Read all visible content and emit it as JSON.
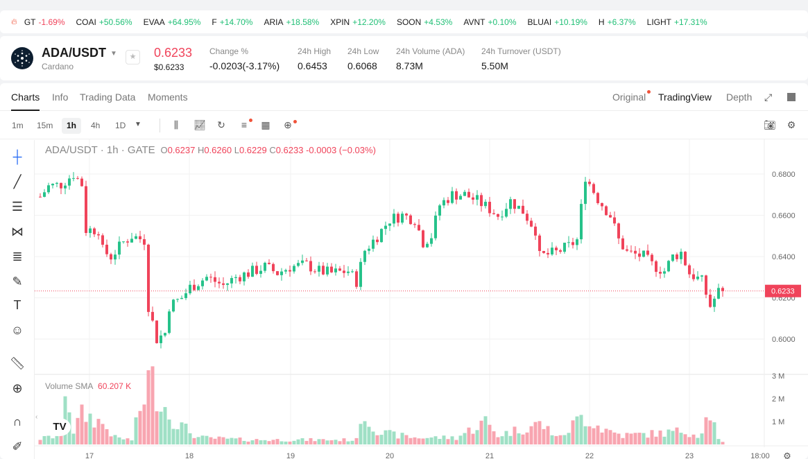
{
  "ticker": [
    {
      "sym": "GT",
      "chg": "-1.69%",
      "dir": "dn"
    },
    {
      "sym": "COAI",
      "chg": "+50.56%",
      "dir": "up"
    },
    {
      "sym": "EVAA",
      "chg": "+64.95%",
      "dir": "up"
    },
    {
      "sym": "F",
      "chg": "+14.70%",
      "dir": "up"
    },
    {
      "sym": "ARIA",
      "chg": "+18.58%",
      "dir": "up"
    },
    {
      "sym": "XPIN",
      "chg": "+12.20%",
      "dir": "up"
    },
    {
      "sym": "SOON",
      "chg": "+4.53%",
      "dir": "up"
    },
    {
      "sym": "AVNT",
      "chg": "+0.10%",
      "dir": "up"
    },
    {
      "sym": "BLUAI",
      "chg": "+10.19%",
      "dir": "up"
    },
    {
      "sym": "H",
      "chg": "+6.37%",
      "dir": "up"
    },
    {
      "sym": "LIGHT",
      "chg": "+17.31%",
      "dir": "up"
    }
  ],
  "header": {
    "pair": "ADA/USDT",
    "name": "Cardano",
    "last": "0.6233",
    "last_usd": "$0.6233",
    "stats": [
      {
        "label": "Change %",
        "value": "-0.0203(-3.17%)"
      },
      {
        "label": "24h High",
        "value": "0.6453"
      },
      {
        "label": "24h Low",
        "value": "0.6068"
      },
      {
        "label": "24h Volume (ADA)",
        "value": "8.73M"
      },
      {
        "label": "24h Turnover (USDT)",
        "value": "5.50M"
      }
    ]
  },
  "tabs": [
    "Charts",
    "Info",
    "Trading Data",
    "Moments"
  ],
  "views": [
    "Original",
    "TradingView",
    "Depth"
  ],
  "intervals": [
    "1m",
    "15m",
    "1h",
    "4h",
    "1D"
  ],
  "legend": {
    "title": "ADA/USDT · 1h · GATE",
    "o": "0.6237",
    "h": "0.6260",
    "l": "0.6229",
    "c": "0.6233",
    "chg": "-0.0003 (−0.03%)",
    "vol_label": "Volume SMA",
    "vol_value": "60.207 K"
  },
  "colors": {
    "up": "#26c28a",
    "down": "#f0435a",
    "vol_up": "#9fe0c5",
    "vol_down": "#f8a5b0"
  },
  "chart_data": {
    "type": "candlestick",
    "ylim": [
      0.592,
      0.688
    ],
    "y_ticks": [
      "0.6000",
      "0.6200",
      "0.6400",
      "0.6600",
      "0.6800"
    ],
    "x_ticks": [
      "17",
      "18",
      "19",
      "20",
      "21",
      "22",
      "23",
      "18:00"
    ],
    "vol_ticks": [
      "1 M",
      "2 M",
      "3 M"
    ],
    "last_price": "0.6233",
    "close_trace": [
      [
        0,
        0.669
      ],
      [
        2,
        0.674
      ],
      [
        5,
        0.675
      ],
      [
        8,
        0.68
      ],
      [
        10,
        0.675
      ],
      [
        11,
        0.653
      ],
      [
        14,
        0.653
      ],
      [
        15,
        0.643
      ],
      [
        17,
        0.64
      ],
      [
        20,
        0.647
      ],
      [
        22,
        0.65
      ],
      [
        25,
        0.648
      ],
      [
        26,
        0.616
      ],
      [
        28,
        0.6
      ],
      [
        30,
        0.603
      ],
      [
        31,
        0.616
      ],
      [
        34,
        0.62
      ],
      [
        36,
        0.625
      ],
      [
        40,
        0.63
      ],
      [
        44,
        0.626
      ],
      [
        47,
        0.63
      ],
      [
        50,
        0.632
      ],
      [
        54,
        0.635
      ],
      [
        57,
        0.632
      ],
      [
        60,
        0.635
      ],
      [
        64,
        0.636
      ],
      [
        67,
        0.633
      ],
      [
        70,
        0.632
      ],
      [
        74,
        0.633
      ],
      [
        76,
        0.628
      ],
      [
        78,
        0.643
      ],
      [
        81,
        0.65
      ],
      [
        84,
        0.658
      ],
      [
        87,
        0.66
      ],
      [
        90,
        0.658
      ],
      [
        92,
        0.647
      ],
      [
        94,
        0.65
      ],
      [
        96,
        0.665
      ],
      [
        99,
        0.67
      ],
      [
        102,
        0.67
      ],
      [
        105,
        0.667
      ],
      [
        108,
        0.663
      ],
      [
        110,
        0.66
      ],
      [
        113,
        0.667
      ],
      [
        116,
        0.662
      ],
      [
        119,
        0.653
      ],
      [
        120,
        0.64
      ],
      [
        124,
        0.642
      ],
      [
        127,
        0.645
      ],
      [
        129,
        0.648
      ],
      [
        131,
        0.679
      ],
      [
        134,
        0.668
      ],
      [
        137,
        0.66
      ],
      [
        139,
        0.648
      ],
      [
        141,
        0.642
      ],
      [
        145,
        0.64
      ],
      [
        147,
        0.636
      ],
      [
        150,
        0.633
      ],
      [
        152,
        0.64
      ],
      [
        154,
        0.642
      ],
      [
        156,
        0.632
      ],
      [
        159,
        0.628
      ],
      [
        161,
        0.616
      ],
      [
        163,
        0.623
      ],
      [
        164,
        0.6233
      ]
    ],
    "volume_trace_M": [
      [
        0,
        0.25
      ],
      [
        5,
        0.4
      ],
      [
        6,
        2.8
      ],
      [
        8,
        0.6
      ],
      [
        10,
        1.3
      ],
      [
        12,
        1.2
      ],
      [
        15,
        0.9
      ],
      [
        18,
        0.3
      ],
      [
        22,
        0.2
      ],
      [
        26,
        2.8
      ],
      [
        27,
        2.7
      ],
      [
        29,
        2.0
      ],
      [
        31,
        1.3
      ],
      [
        34,
        0.8
      ],
      [
        38,
        0.3
      ],
      [
        50,
        0.2
      ],
      [
        76,
        0.2
      ],
      [
        77,
        1.4
      ],
      [
        79,
        1.0
      ],
      [
        82,
        0.5
      ],
      [
        90,
        0.3
      ],
      [
        100,
        0.3
      ],
      [
        107,
        1.0
      ],
      [
        110,
        0.4
      ],
      [
        120,
        0.9
      ],
      [
        125,
        0.3
      ],
      [
        130,
        1.2
      ],
      [
        132,
        1.1
      ],
      [
        135,
        0.7
      ],
      [
        140,
        0.4
      ],
      [
        150,
        0.5
      ],
      [
        155,
        0.6
      ],
      [
        158,
        0.4
      ],
      [
        161,
        1.4
      ],
      [
        163,
        0.2
      ],
      [
        164,
        0.1
      ]
    ]
  }
}
